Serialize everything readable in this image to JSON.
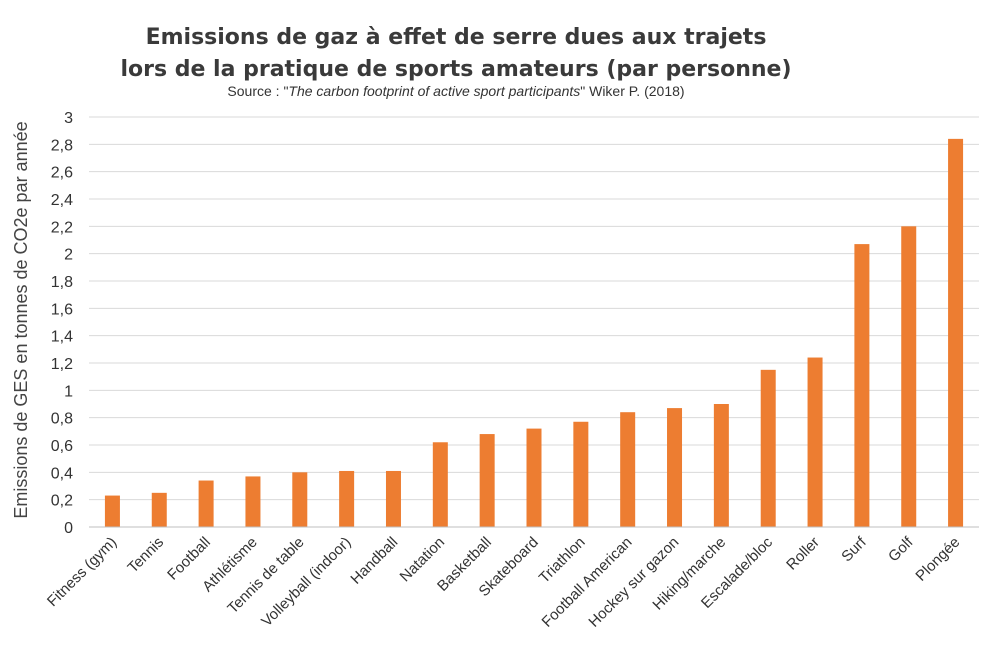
{
  "chart_data": {
    "type": "bar",
    "title_line1": "Emissions de gaz à effet de serre dues aux trajets",
    "title_line2": "lors de la pratique de sports amateurs (par personne)",
    "source_prefix": "Source : \"",
    "source_italic": "The carbon footprint of active sport participants",
    "source_suffix": "\" Wiker P. (2018)",
    "ylabel": "Emissions de GES en tonnes de CO2e par année",
    "ylim": [
      0,
      3
    ],
    "yticks": [
      "0",
      "0,2",
      "0,4",
      "0,6",
      "0,8",
      "1",
      "1,2",
      "1,4",
      "1,6",
      "1,8",
      "2",
      "2,2",
      "2,4",
      "2,6",
      "2,8",
      "3"
    ],
    "ytick_values": [
      0,
      0.2,
      0.4,
      0.6,
      0.8,
      1.0,
      1.2,
      1.4,
      1.6,
      1.8,
      2.0,
      2.2,
      2.4,
      2.6,
      2.8,
      3.0
    ],
    "grid": true,
    "bar_color": "#ED7D31",
    "categories": [
      "Fitness (gym)",
      "Tennis",
      "Football",
      "Athlétisme",
      "Tennis de table",
      "Volleyball (indoor)",
      "Handball",
      "Natation",
      "Basketball",
      "Skateboard",
      "Triathlon",
      "Football American",
      "Hockey sur gazon",
      "Hiking/marche",
      "Escalade/bloc",
      "Roller",
      "Surf",
      "Golf",
      "Plongée"
    ],
    "values": [
      0.23,
      0.25,
      0.34,
      0.37,
      0.4,
      0.41,
      0.41,
      0.62,
      0.68,
      0.72,
      0.77,
      0.84,
      0.87,
      0.9,
      1.15,
      1.24,
      2.07,
      2.2,
      2.84
    ]
  }
}
